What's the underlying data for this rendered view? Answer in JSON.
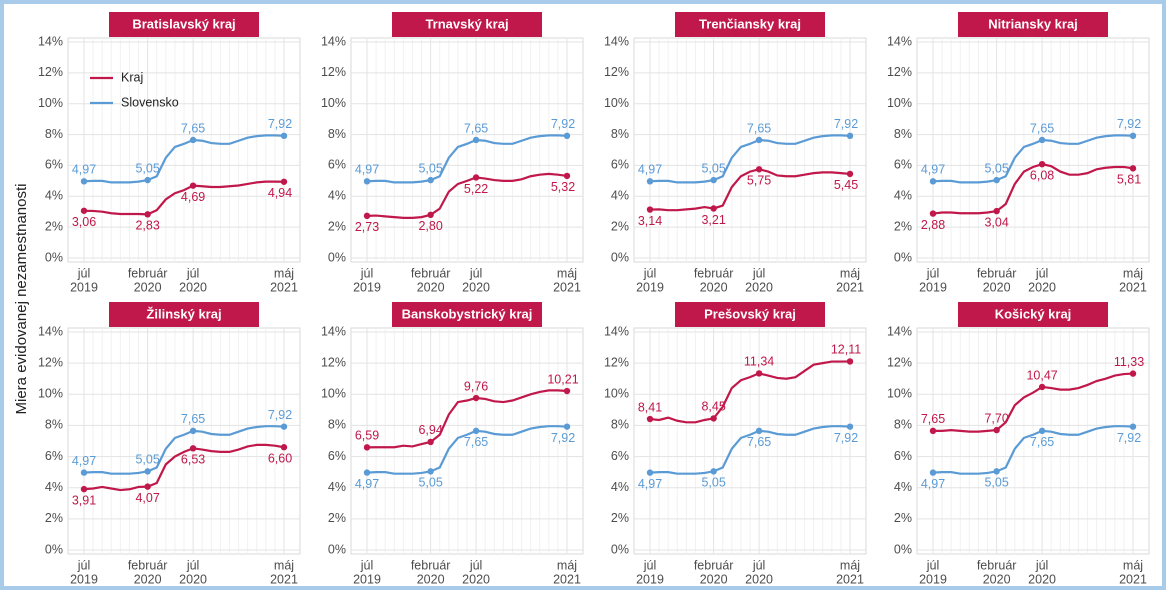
{
  "chart_data": {
    "type": "line",
    "ylabel": "Miera evidovanej nezamestnanosti",
    "categories": [
      [
        "júl",
        "2019"
      ],
      null,
      null,
      null,
      null,
      null,
      null,
      [
        "február",
        "2020"
      ],
      null,
      null,
      null,
      null,
      [
        "júl",
        "2020"
      ],
      null,
      null,
      null,
      null,
      null,
      null,
      null,
      null,
      null,
      [
        "máj",
        "2021"
      ]
    ],
    "ylim": [
      0,
      14
    ],
    "yticks": [
      {
        "value": 0,
        "label": "0%"
      },
      {
        "value": 2,
        "label": "2%"
      },
      {
        "value": 4,
        "label": "4%"
      },
      {
        "value": 6,
        "label": "6%"
      },
      {
        "value": 8,
        "label": "8%"
      },
      {
        "value": 10,
        "label": "10%"
      },
      {
        "value": 12,
        "label": "12%"
      },
      {
        "value": 14,
        "label": "14%"
      }
    ],
    "grid": true,
    "legend": "top-left",
    "series": [
      {
        "name": "Kraj",
        "color": "#c0184a"
      },
      {
        "name": "Slovensko",
        "color": "#5b9bd5",
        "values": [
          4.97,
          5.0,
          5.0,
          4.9,
          4.9,
          4.9,
          4.95,
          5.05,
          5.3,
          6.5,
          7.2,
          7.4,
          7.65,
          7.6,
          7.45,
          7.4,
          7.4,
          7.6,
          7.8,
          7.9,
          7.95,
          7.95,
          7.92
        ],
        "value_labels": [
          "4,97",
          null,
          null,
          null,
          null,
          null,
          null,
          "5,05",
          null,
          null,
          null,
          null,
          "7,65",
          null,
          null,
          null,
          null,
          null,
          null,
          null,
          null,
          null,
          "7,92"
        ]
      }
    ],
    "panels": [
      {
        "title": "Bratislavský kraj",
        "values": [
          3.06,
          3.05,
          3.0,
          2.9,
          2.85,
          2.85,
          2.85,
          2.83,
          3.1,
          3.8,
          4.2,
          4.4,
          4.69,
          4.65,
          4.6,
          4.6,
          4.65,
          4.7,
          4.8,
          4.9,
          4.95,
          4.95,
          4.94
        ],
        "value_labels": [
          "3,06",
          null,
          null,
          null,
          null,
          null,
          null,
          "2,83",
          null,
          null,
          null,
          null,
          "4,69",
          null,
          null,
          null,
          null,
          null,
          null,
          null,
          null,
          null,
          "4,94"
        ]
      },
      {
        "title": "Trnavský kraj",
        "values": [
          2.73,
          2.75,
          2.7,
          2.65,
          2.6,
          2.6,
          2.65,
          2.8,
          3.2,
          4.3,
          4.8,
          5.0,
          5.22,
          5.15,
          5.05,
          5.0,
          5.0,
          5.1,
          5.3,
          5.4,
          5.45,
          5.4,
          5.32
        ],
        "value_labels": [
          "2,73",
          null,
          null,
          null,
          null,
          null,
          null,
          "2,80",
          null,
          null,
          null,
          null,
          "5,22",
          null,
          null,
          null,
          null,
          null,
          null,
          null,
          null,
          null,
          "5,32"
        ]
      },
      {
        "title": "Trenčiansky kraj",
        "values": [
          3.14,
          3.15,
          3.1,
          3.1,
          3.15,
          3.2,
          3.3,
          3.21,
          3.4,
          4.6,
          5.3,
          5.6,
          5.75,
          5.6,
          5.35,
          5.3,
          5.3,
          5.4,
          5.5,
          5.55,
          5.55,
          5.5,
          5.45
        ],
        "value_labels": [
          "3,14",
          null,
          null,
          null,
          null,
          null,
          null,
          "3,21",
          null,
          null,
          null,
          null,
          "5,75",
          null,
          null,
          null,
          null,
          null,
          null,
          null,
          null,
          null,
          "5,45"
        ]
      },
      {
        "title": "Nitriansky kraj",
        "values": [
          2.88,
          2.95,
          2.95,
          2.9,
          2.9,
          2.9,
          2.95,
          3.04,
          3.5,
          4.8,
          5.6,
          5.9,
          6.08,
          5.95,
          5.6,
          5.4,
          5.4,
          5.5,
          5.75,
          5.85,
          5.9,
          5.9,
          5.81
        ],
        "value_labels": [
          "2,88",
          null,
          null,
          null,
          null,
          null,
          null,
          "3,04",
          null,
          null,
          null,
          null,
          "6,08",
          null,
          null,
          null,
          null,
          null,
          null,
          null,
          null,
          null,
          "5,81"
        ]
      },
      {
        "title": "Žilinský kraj",
        "values": [
          3.91,
          3.95,
          4.05,
          3.95,
          3.85,
          3.9,
          4.05,
          4.07,
          4.3,
          5.5,
          6.0,
          6.3,
          6.53,
          6.45,
          6.35,
          6.3,
          6.3,
          6.45,
          6.65,
          6.75,
          6.75,
          6.7,
          6.6
        ],
        "value_labels": [
          "3,91",
          null,
          null,
          null,
          null,
          null,
          null,
          "4,07",
          null,
          null,
          null,
          null,
          "6,53",
          null,
          null,
          null,
          null,
          null,
          null,
          null,
          null,
          null,
          "6,60"
        ]
      },
      {
        "title": "Banskobystrický kraj",
        "values": [
          6.59,
          6.6,
          6.6,
          6.6,
          6.7,
          6.65,
          6.8,
          6.94,
          7.4,
          8.7,
          9.5,
          9.6,
          9.76,
          9.7,
          9.55,
          9.5,
          9.6,
          9.8,
          10.0,
          10.15,
          10.25,
          10.25,
          10.21
        ],
        "value_labels": [
          "6,59",
          null,
          null,
          null,
          null,
          null,
          null,
          "6,94",
          null,
          null,
          null,
          null,
          "9,76",
          null,
          null,
          null,
          null,
          null,
          null,
          null,
          null,
          null,
          "10,21"
        ]
      },
      {
        "title": "Prešovský kraj",
        "values": [
          8.41,
          8.35,
          8.5,
          8.3,
          8.2,
          8.2,
          8.35,
          8.45,
          9.2,
          10.4,
          10.9,
          11.1,
          11.34,
          11.2,
          11.05,
          11.0,
          11.1,
          11.5,
          11.9,
          12.0,
          12.1,
          12.1,
          12.11
        ],
        "value_labels": [
          "8,41",
          null,
          null,
          null,
          null,
          null,
          null,
          "8,45",
          null,
          null,
          null,
          null,
          "11,34",
          null,
          null,
          null,
          null,
          null,
          null,
          null,
          null,
          null,
          "12,11"
        ]
      },
      {
        "title": "Košický kraj",
        "values": [
          7.65,
          7.65,
          7.7,
          7.65,
          7.6,
          7.6,
          7.65,
          7.7,
          8.2,
          9.3,
          9.8,
          10.1,
          10.47,
          10.4,
          10.3,
          10.3,
          10.4,
          10.6,
          10.85,
          11.0,
          11.2,
          11.3,
          11.33
        ],
        "value_labels": [
          "7,65",
          null,
          null,
          null,
          null,
          null,
          null,
          "7,70",
          null,
          null,
          null,
          null,
          "10,47",
          null,
          null,
          null,
          null,
          null,
          null,
          null,
          null,
          null,
          "11,33"
        ]
      }
    ]
  }
}
